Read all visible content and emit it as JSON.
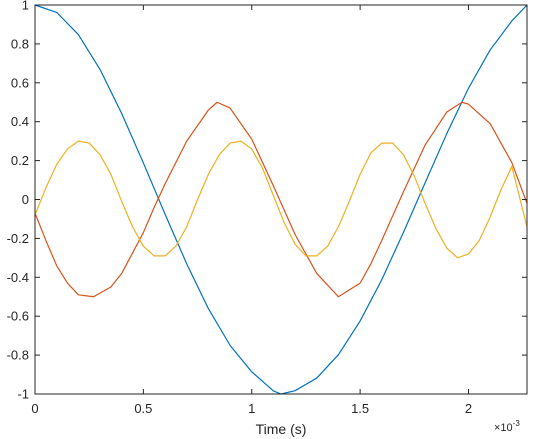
{
  "chart_data": {
    "type": "line",
    "title": "",
    "xlabel": "Time (s)",
    "ylabel": "",
    "x_exponent_label": "×10",
    "x_exponent_power": "-3",
    "xlim": [
      0,
      2.27
    ],
    "ylim": [
      -1,
      1
    ],
    "x_ticks": [
      0,
      0.5,
      1,
      1.5,
      2
    ],
    "x_tick_labels": [
      "0",
      "0.5",
      "1",
      "1.5",
      "2"
    ],
    "y_ticks": [
      -1,
      -0.8,
      -0.6,
      -0.4,
      -0.2,
      0,
      0.2,
      0.4,
      0.6,
      0.8,
      1
    ],
    "y_tick_labels": [
      "-1",
      "-0.8",
      "-0.6",
      "-0.4",
      "-0.2",
      "0",
      "0.2",
      "0.4",
      "0.6",
      "0.8",
      "1"
    ],
    "grid": false,
    "box": true,
    "series": [
      {
        "color": "#0072BD",
        "x": [
          0,
          0.1,
          0.2,
          0.3,
          0.4,
          0.5,
          0.6,
          0.7,
          0.8,
          0.9,
          1.0,
          1.1,
          1.135,
          1.2,
          1.3,
          1.4,
          1.5,
          1.6,
          1.7,
          1.8,
          1.9,
          2.0,
          2.1,
          2.2,
          2.27
        ],
        "y": [
          1.0,
          0.962,
          0.848,
          0.669,
          0.442,
          0.188,
          -0.075,
          -0.331,
          -0.561,
          -0.75,
          -0.886,
          -0.984,
          -1.0,
          -0.983,
          -0.918,
          -0.798,
          -0.625,
          -0.412,
          -0.169,
          0.086,
          0.339,
          0.572,
          0.769,
          0.918,
          1.0
        ]
      },
      {
        "color": "#D95319",
        "x": [
          0,
          0.05,
          0.1,
          0.15,
          0.2,
          0.27,
          0.35,
          0.4,
          0.5,
          0.55,
          0.6,
          0.7,
          0.8,
          0.84,
          0.9,
          1.0,
          1.1,
          1.2,
          1.3,
          1.4,
          1.5,
          1.55,
          1.6,
          1.7,
          1.8,
          1.9,
          1.97,
          2.0,
          2.1,
          2.2,
          2.27
        ],
        "y": [
          -0.07,
          -0.21,
          -0.34,
          -0.43,
          -0.49,
          -0.5,
          -0.45,
          -0.38,
          -0.17,
          -0.04,
          0.08,
          0.3,
          0.46,
          0.5,
          0.47,
          0.31,
          0.07,
          -0.18,
          -0.38,
          -0.5,
          -0.43,
          -0.33,
          -0.21,
          0.04,
          0.28,
          0.45,
          0.5,
          0.49,
          0.39,
          0.19,
          -0.02
        ]
      },
      {
        "color": "#EDB120",
        "x": [
          0,
          0.05,
          0.1,
          0.15,
          0.2,
          0.25,
          0.3,
          0.35,
          0.4,
          0.45,
          0.5,
          0.55,
          0.6,
          0.65,
          0.7,
          0.75,
          0.8,
          0.85,
          0.9,
          0.95,
          1.0,
          1.05,
          1.1,
          1.15,
          1.2,
          1.25,
          1.3,
          1.35,
          1.4,
          1.45,
          1.5,
          1.55,
          1.6,
          1.65,
          1.7,
          1.75,
          1.8,
          1.85,
          1.9,
          1.95,
          2.0,
          2.05,
          2.1,
          2.15,
          2.2,
          2.27
        ],
        "y": [
          -0.08,
          0.06,
          0.18,
          0.26,
          0.3,
          0.29,
          0.23,
          0.13,
          -0.01,
          -0.14,
          -0.24,
          -0.29,
          -0.29,
          -0.24,
          -0.14,
          0.0,
          0.13,
          0.23,
          0.29,
          0.3,
          0.26,
          0.16,
          0.02,
          -0.12,
          -0.23,
          -0.29,
          -0.29,
          -0.24,
          -0.14,
          -0.01,
          0.13,
          0.24,
          0.29,
          0.29,
          0.23,
          0.12,
          -0.02,
          -0.15,
          -0.25,
          -0.3,
          -0.28,
          -0.21,
          -0.09,
          0.05,
          0.17,
          -0.14
        ]
      }
    ]
  }
}
